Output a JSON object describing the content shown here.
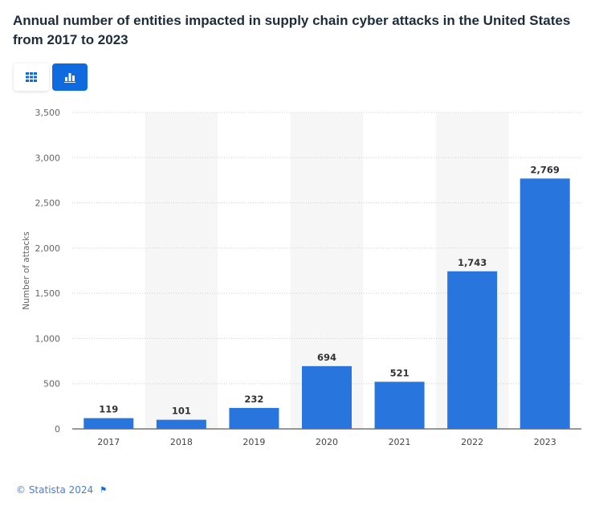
{
  "chart_data": {
    "type": "bar",
    "title": "Annual number of entities impacted in supply chain cyber attacks in the United States from 2017 to 2023",
    "xlabel": "",
    "ylabel": "Number of attacks",
    "categories": [
      "2017",
      "2018",
      "2019",
      "2020",
      "2021",
      "2022",
      "2023"
    ],
    "values": [
      119,
      101,
      232,
      694,
      521,
      1743,
      2769
    ],
    "data_labels": [
      "119",
      "101",
      "232",
      "694",
      "521",
      "1,743",
      "2,769"
    ],
    "ylim": [
      0,
      3500
    ],
    "yticks": [
      0,
      500,
      1000,
      1500,
      2000,
      2500,
      3000,
      3500
    ],
    "ytick_labels": [
      "0",
      "500",
      "1,000",
      "1,500",
      "2,000",
      "2,500",
      "3,000",
      "3,500"
    ],
    "grid": true,
    "bar_color": "#2876dd"
  },
  "toolbar": {
    "table_icon": "grid-icon",
    "chart_icon": "bar-chart-icon",
    "active_color": "#0f6ae0"
  },
  "footer": {
    "copyright": "© Statista 2024",
    "flag_icon": "flag-icon"
  }
}
